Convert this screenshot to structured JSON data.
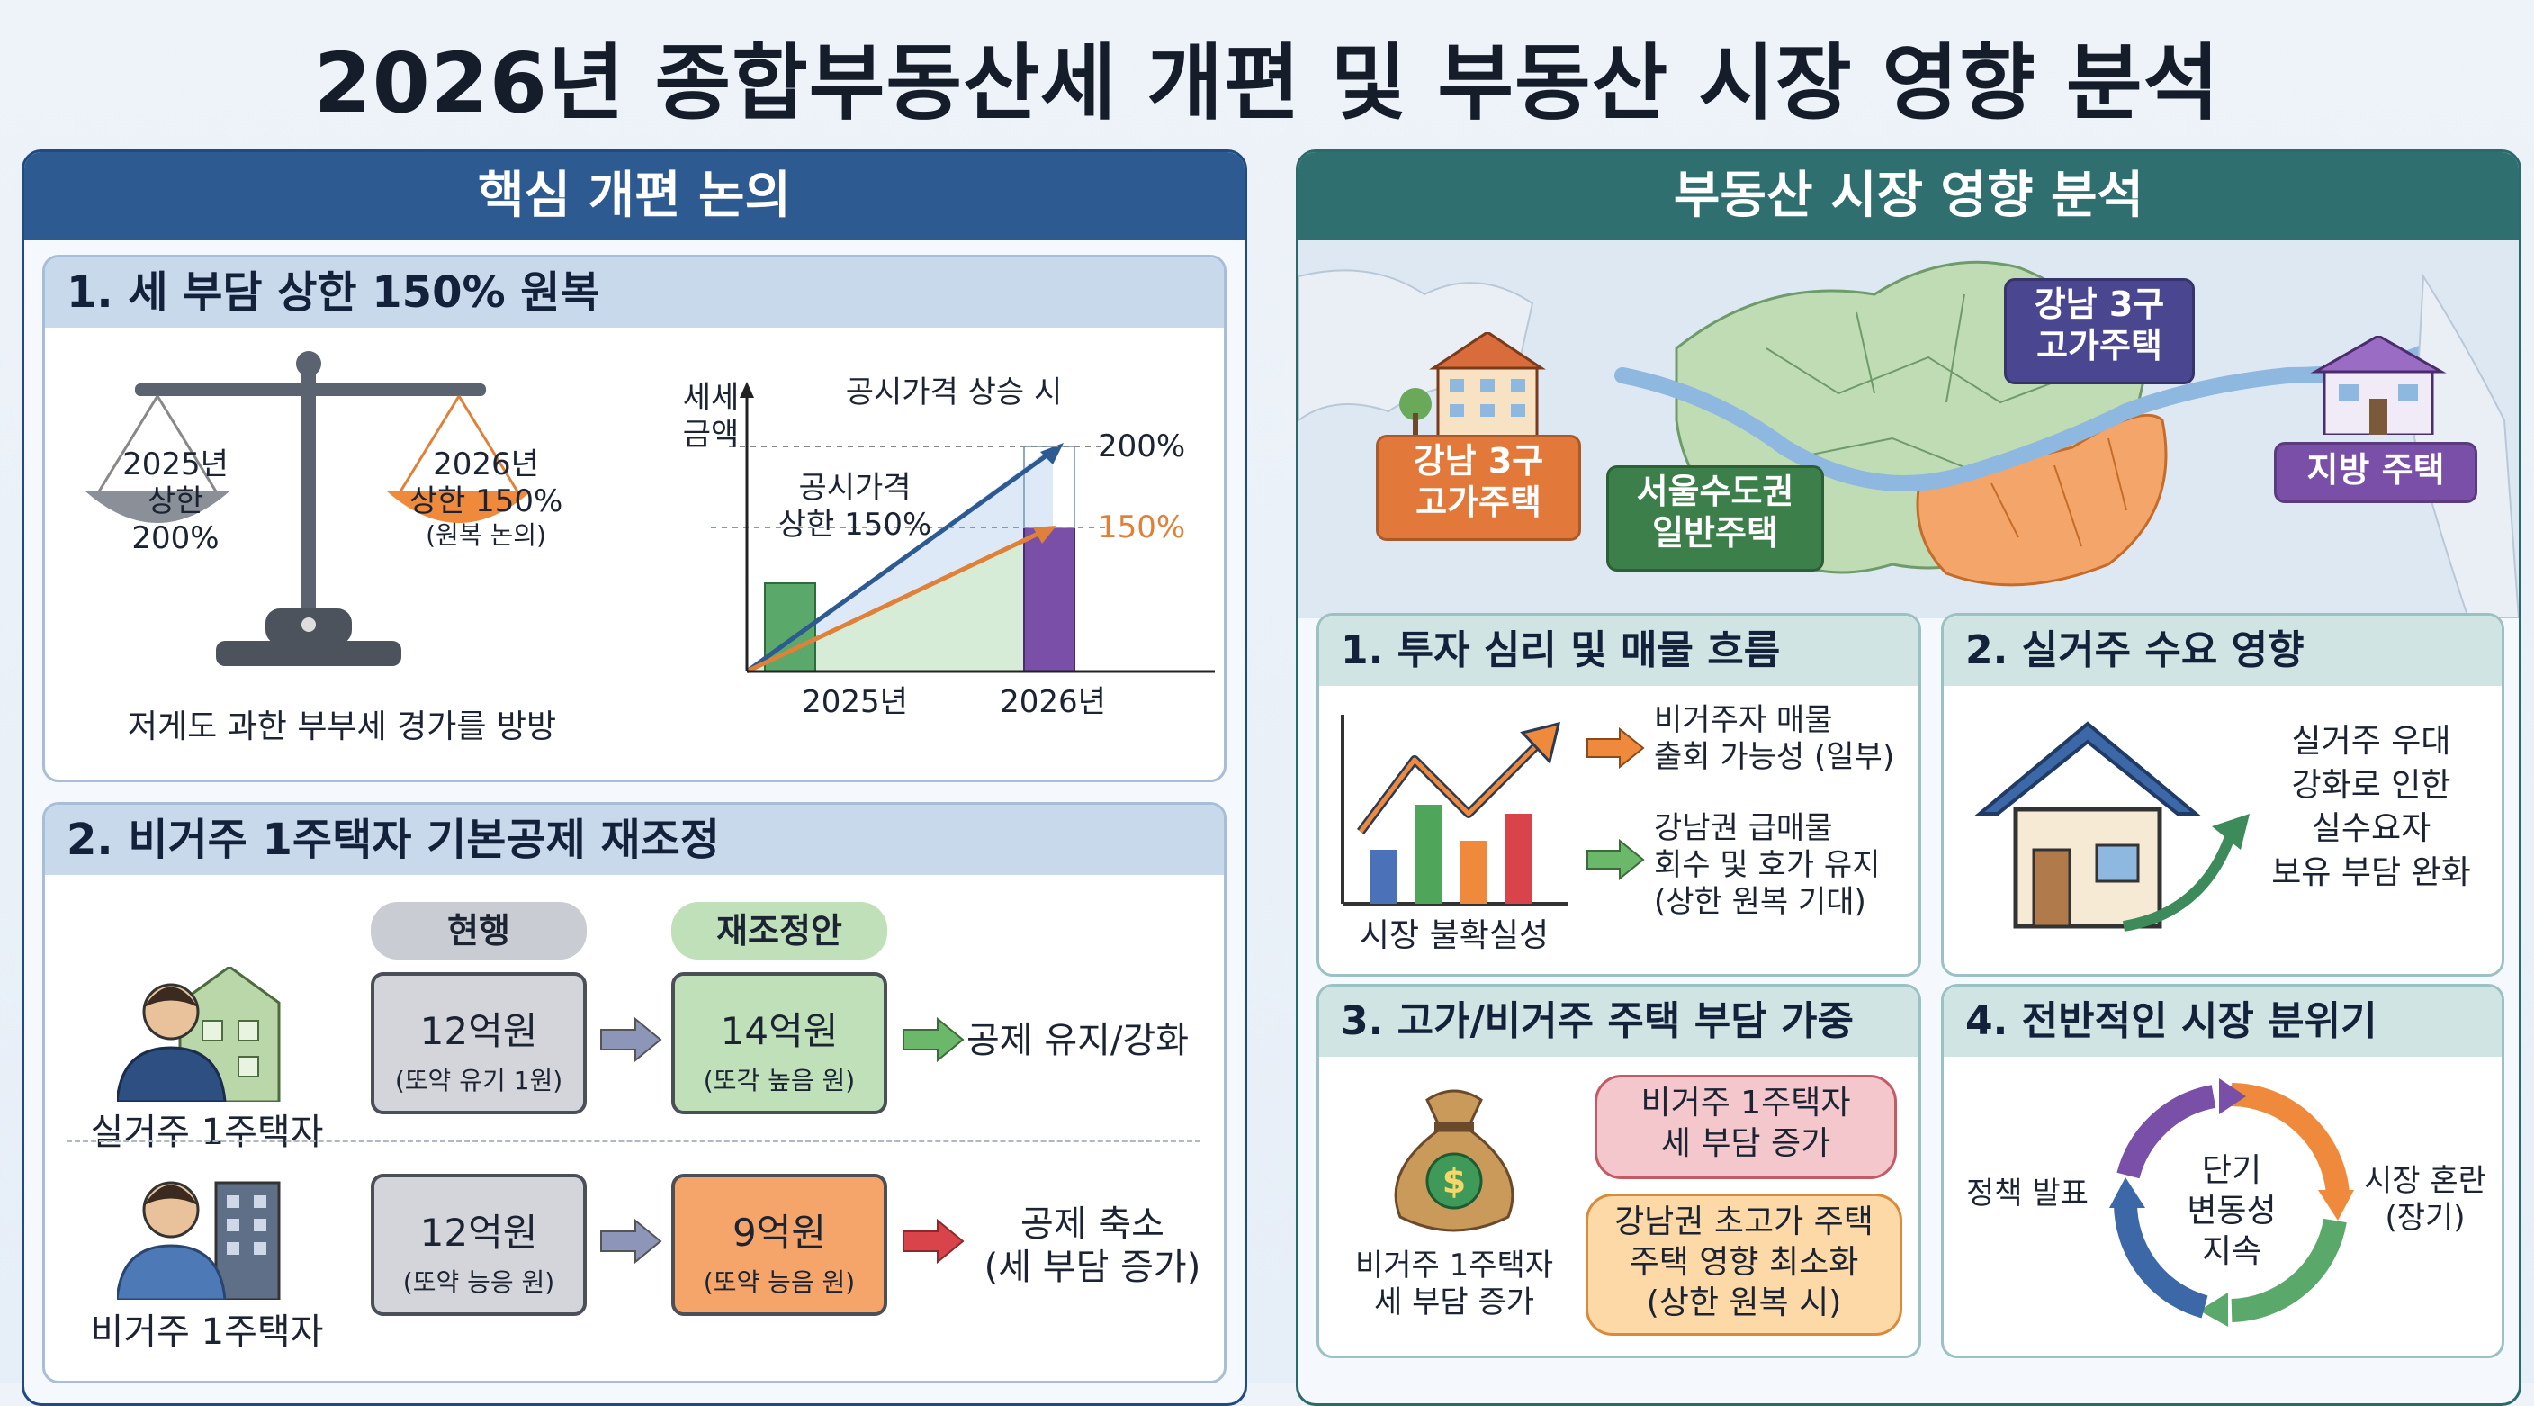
{
  "title": "2026년 종합부동산세 개편 및 부동산 시장 영향 분석",
  "left": {
    "header": "핵심 개편 논의",
    "sec1": {
      "title": "1. 세 부담 상한 150% 원복",
      "scale": {
        "left_label_1": "2025년",
        "left_label_2": "상한",
        "left_label_3": "200%",
        "right_label_1": "2026년",
        "right_label_2": "상한 150%",
        "right_label_3": "(원복 논의)",
        "caption": "저게도 과한 부부세 경가를 방방"
      },
      "chart": {
        "ylabel_1": "세세",
        "ylabel_2": "금액",
        "top_label": "공시가격 상승 시",
        "mid_label_1": "공시가격",
        "mid_label_2": "상한 150%",
        "label_200": "200%",
        "label_150": "150%",
        "x_2025": "2025년",
        "x_2026": "2026년"
      }
    },
    "sec2": {
      "title": "2. 비거주 1주택자 기본공제 재조정",
      "col_current": "현행",
      "col_proposal": "재조정안",
      "row1": {
        "person": "실거주 1주택자",
        "current_value": "12억원",
        "current_note": "(또약 유기 1원)",
        "proposal_value": "14억원",
        "proposal_note": "(또각 높음 원)",
        "result": "공제 유지/강화"
      },
      "row2": {
        "person": "비거주 1주택자",
        "current_value": "12억원",
        "current_note": "(또약 능응 원)",
        "proposal_value": "9억원",
        "proposal_note": "(또약 능음 원)",
        "result_1": "공제 축소",
        "result_2": "(세 부담 증가)"
      }
    }
  },
  "right": {
    "header": "부동산 시장 영향 분석",
    "map": {
      "badge_gangnam_top_1": "강남 3구",
      "badge_gangnam_top_2": "고가주택",
      "badge_gangnam_left_1": "강남 3구",
      "badge_gangnam_left_2": "고가주택",
      "badge_capital_1": "서울수도권",
      "badge_capital_2": "일반주택",
      "badge_local": "지방 주택"
    },
    "sec1": {
      "title": "1. 투자 심리 및 매물 흐름",
      "caption": "시장 불확실성",
      "item1_1": "비거주자 매물",
      "item1_2": "출회 가능성 (일부)",
      "item2_1": "강남권 급매물",
      "item2_2": "회수 및 호가 유지",
      "item2_3": "(상한 원복 기대)"
    },
    "sec2": {
      "title": "2. 실거주 수요 영향",
      "text_1": "실거주 우대",
      "text_2": "강화로 인한",
      "text_3": "실수요자",
      "text_4": "보유 부담 완화"
    },
    "sec3": {
      "title": "3. 고가/비거주 주택 부담 가중",
      "caption_1": "비거주 1주택자",
      "caption_2": "세 부담 증가",
      "bubble1_1": "비거주 1주택자",
      "bubble1_2": "세 부담 증가",
      "bubble2_1": "강남권 초고가 주택",
      "bubble2_2": "주택 영향 최소화",
      "bubble2_3": "(상한 원복 시)"
    },
    "sec4": {
      "title": "4. 전반적인 시장 분위기",
      "left_label": "정책 발표",
      "center_1": "단기",
      "center_2": "변동성",
      "center_3": "지속",
      "right_label_1": "시장 혼란",
      "right_label_2": "(장기)"
    }
  },
  "colors": {
    "navy": "#2d5a91",
    "teal": "#2f6f6f",
    "orange": "#ef8a3c",
    "green": "#5aa86a",
    "purple": "#7a4fa8",
    "red": "#d9434a"
  }
}
